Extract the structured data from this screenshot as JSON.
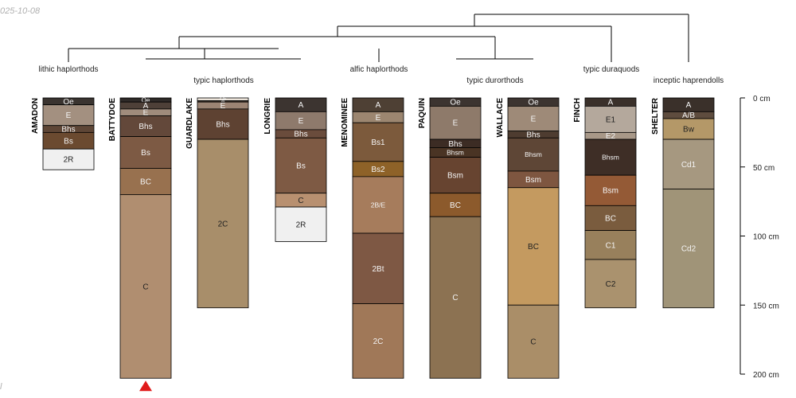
{
  "footer": {
    "date": "025-10-08",
    "page": "l"
  },
  "colors": {
    "line": "#000000",
    "marker": "#e01b1b"
  },
  "depth_scale": {
    "unit": "cm",
    "ticks": [
      {
        "depth": 0,
        "label": "0 cm"
      },
      {
        "depth": 50,
        "label": "50 cm"
      },
      {
        "depth": 100,
        "label": "100 cm"
      },
      {
        "depth": 150,
        "label": "150 cm"
      },
      {
        "depth": 200,
        "label": "200 cm"
      }
    ]
  },
  "groups": [
    {
      "label": "lithic haplorthods"
    },
    {
      "label": "typic haplorthods"
    },
    {
      "label": "alfic haplorthods"
    },
    {
      "label": "typic durorthods"
    },
    {
      "label": "typic duraquods"
    },
    {
      "label": "inceptic haprendolls"
    }
  ],
  "profiles": [
    {
      "name": "AMADON",
      "horizons": [
        {
          "name": "Oe",
          "top": 0,
          "bottom": 5,
          "color": "#3a3430",
          "text": "light"
        },
        {
          "name": "E",
          "top": 5,
          "bottom": 20,
          "color": "#a39080",
          "text": "light"
        },
        {
          "name": "Bhs",
          "top": 20,
          "bottom": 25,
          "color": "#5e4636",
          "text": "light"
        },
        {
          "name": "Bs",
          "top": 25,
          "bottom": 37,
          "color": "#6b4a30",
          "text": "light"
        },
        {
          "name": "2R",
          "top": 37,
          "bottom": 52,
          "color": "#f0f0f0",
          "text": "dark"
        }
      ]
    },
    {
      "name": "BATTYDOE",
      "marker": true,
      "horizons": [
        {
          "name": "Oe",
          "top": 0,
          "bottom": 3,
          "color": "#2e2a28",
          "text": "light"
        },
        {
          "name": "A",
          "top": 3,
          "bottom": 8,
          "color": "#4e4038",
          "text": "light"
        },
        {
          "name": "E",
          "top": 8,
          "bottom": 13,
          "color": "#a08c7c",
          "text": "light"
        },
        {
          "name": "Bhs",
          "top": 13,
          "bottom": 28,
          "color": "#63483a",
          "text": "light"
        },
        {
          "name": "Bs",
          "top": 28,
          "bottom": 51,
          "color": "#7d5a44",
          "text": "light"
        },
        {
          "name": "BC",
          "top": 51,
          "bottom": 70,
          "color": "#98714f",
          "text": "light"
        },
        {
          "name": "C",
          "top": 70,
          "bottom": 203,
          "color": "#b08e70",
          "text": "dark"
        }
      ]
    },
    {
      "name": "GUARDLAKE",
      "horizons": [
        {
          "name": "Oi",
          "top": 0,
          "bottom": 2,
          "color": "#ece4da",
          "text": "light"
        },
        {
          "name": "A",
          "top": 2,
          "bottom": 3,
          "color": "#3e322a",
          "text": "light"
        },
        {
          "name": "E",
          "top": 3,
          "bottom": 8,
          "color": "#9c8474",
          "text": "light"
        },
        {
          "name": "Bhs",
          "top": 8,
          "bottom": 30,
          "color": "#5e4232",
          "text": "light"
        },
        {
          "name": "2C",
          "top": 30,
          "bottom": 152,
          "color": "#a88e6a",
          "text": "dark"
        }
      ]
    },
    {
      "name": "LONGRIE",
      "horizons": [
        {
          "name": "A",
          "top": 0,
          "bottom": 10,
          "color": "#3c3430",
          "text": "light"
        },
        {
          "name": "E",
          "top": 10,
          "bottom": 23,
          "color": "#8e7a6c",
          "text": "light"
        },
        {
          "name": "Bhs",
          "top": 23,
          "bottom": 29,
          "color": "#6a4c3c",
          "text": "light"
        },
        {
          "name": "Bs",
          "top": 29,
          "bottom": 69,
          "color": "#7e5a44",
          "text": "light"
        },
        {
          "name": "C",
          "top": 69,
          "bottom": 79,
          "color": "#b89070",
          "text": "dark"
        },
        {
          "name": "2R",
          "top": 79,
          "bottom": 104,
          "color": "#f0f0f0",
          "text": "dark"
        }
      ]
    },
    {
      "name": "MENOMINEE",
      "horizons": [
        {
          "name": "A",
          "top": 0,
          "bottom": 10,
          "color": "#4e4034",
          "text": "light"
        },
        {
          "name": "E",
          "top": 10,
          "bottom": 18,
          "color": "#9c8670",
          "text": "light"
        },
        {
          "name": "Bs1",
          "top": 18,
          "bottom": 46,
          "color": "#7c5a3c",
          "text": "light"
        },
        {
          "name": "Bs2",
          "top": 46,
          "bottom": 57,
          "color": "#8e6228",
          "text": "light"
        },
        {
          "name": "2B/E",
          "top": 57,
          "bottom": 98,
          "color": "#a67c5c",
          "text": "light"
        },
        {
          "name": "2Bt",
          "top": 98,
          "bottom": 149,
          "color": "#7e5844",
          "text": "light"
        },
        {
          "name": "2C",
          "top": 149,
          "bottom": 203,
          "color": "#a07858",
          "text": "light"
        }
      ]
    },
    {
      "name": "PAQUIN",
      "horizons": [
        {
          "name": "Oe",
          "top": 0,
          "bottom": 6,
          "color": "#3c3430",
          "text": "light"
        },
        {
          "name": "E",
          "top": 6,
          "bottom": 30,
          "color": "#8e7a6a",
          "text": "light"
        },
        {
          "name": "Bhs",
          "top": 30,
          "bottom": 36,
          "color": "#3c2c24",
          "text": "light"
        },
        {
          "name": "Bhsm",
          "top": 36,
          "bottom": 43,
          "color": "#4a3424",
          "text": "light"
        },
        {
          "name": "Bsm",
          "top": 43,
          "bottom": 69,
          "color": "#674430",
          "text": "light"
        },
        {
          "name": "BC",
          "top": 69,
          "bottom": 86,
          "color": "#8c5a2c",
          "text": "light"
        },
        {
          "name": "C",
          "top": 86,
          "bottom": 203,
          "color": "#8c7252",
          "text": "light"
        }
      ]
    },
    {
      "name": "WALLACE",
      "horizons": [
        {
          "name": "Oe",
          "top": 0,
          "bottom": 6,
          "color": "#3c3430",
          "text": "light"
        },
        {
          "name": "E",
          "top": 6,
          "bottom": 24,
          "color": "#9e8a78",
          "text": "light"
        },
        {
          "name": "Bhs",
          "top": 24,
          "bottom": 29,
          "color": "#4e3c30",
          "text": "light"
        },
        {
          "name": "Bhsm",
          "top": 29,
          "bottom": 53,
          "color": "#5e4636",
          "text": "light"
        },
        {
          "name": "Bsm",
          "top": 53,
          "bottom": 65,
          "color": "#7e5640",
          "text": "light"
        },
        {
          "name": "BC",
          "top": 65,
          "bottom": 150,
          "color": "#c49a60",
          "text": "dark"
        },
        {
          "name": "C",
          "top": 150,
          "bottom": 203,
          "color": "#aa8e68",
          "text": "dark"
        }
      ]
    },
    {
      "name": "FINCH",
      "horizons": [
        {
          "name": "A",
          "top": 0,
          "bottom": 6,
          "color": "#3a302a",
          "text": "light"
        },
        {
          "name": "E1",
          "top": 6,
          "bottom": 25,
          "color": "#b4a89c",
          "text": "dark"
        },
        {
          "name": "E2",
          "top": 25,
          "bottom": 30,
          "color": "#a89888",
          "text": "light"
        },
        {
          "name": "Bhsm",
          "top": 30,
          "bottom": 56,
          "color": "#3e2e26",
          "text": "light"
        },
        {
          "name": "Bsm",
          "top": 56,
          "bottom": 78,
          "color": "#945a36",
          "text": "light"
        },
        {
          "name": "BC",
          "top": 78,
          "bottom": 96,
          "color": "#7a5c3e",
          "text": "light"
        },
        {
          "name": "C1",
          "top": 96,
          "bottom": 117,
          "color": "#98805c",
          "text": "light"
        },
        {
          "name": "C2",
          "top": 117,
          "bottom": 152,
          "color": "#aa926e",
          "text": "dark"
        }
      ]
    },
    {
      "name": "SHELTER",
      "horizons": [
        {
          "name": "A",
          "top": 0,
          "bottom": 10,
          "color": "#3a302a",
          "text": "light"
        },
        {
          "name": "A/B",
          "top": 10,
          "bottom": 15,
          "color": "#5e4c3e",
          "text": "light"
        },
        {
          "name": "Bw",
          "top": 15,
          "bottom": 30,
          "color": "#b49868",
          "text": "dark"
        },
        {
          "name": "Cd1",
          "top": 30,
          "bottom": 66,
          "color": "#a69880",
          "text": "light"
        },
        {
          "name": "Cd2",
          "top": 66,
          "bottom": 152,
          "color": "#a09478",
          "text": "light"
        }
      ]
    }
  ]
}
